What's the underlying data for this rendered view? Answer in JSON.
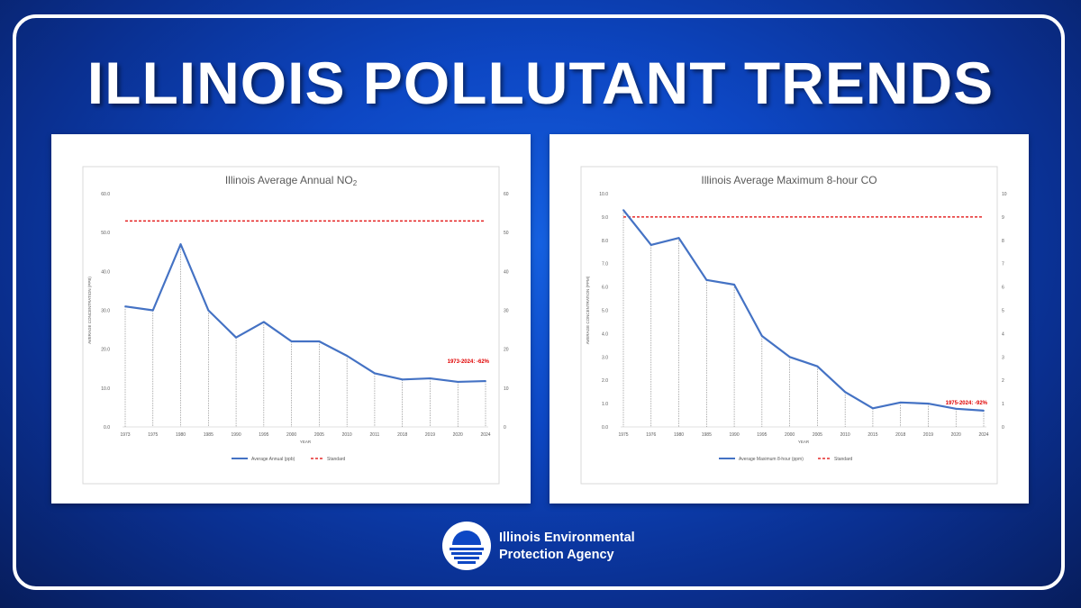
{
  "headline": "ILLINOIS POLLUTANT TRENDS",
  "agency": {
    "line1": "Illinois Environmental",
    "line2": "Protection Agency"
  },
  "colors": {
    "series": "#4472c4",
    "standard": "#e00000",
    "annotation": "#e00000",
    "background": "#0d47c4"
  },
  "chart_data": [
    {
      "type": "line",
      "title": "Illinois Average Annual NO",
      "title_subscript": "2",
      "xlabel": "YEAR",
      "ylabel": "AVERAGE CONCENTRATION (PPB)",
      "x": [
        "1973",
        "1975",
        "1980",
        "1985",
        "1990",
        "1995",
        "2000",
        "2005",
        "2010",
        "2011",
        "2018",
        "2019",
        "2020",
        "2024"
      ],
      "ylim": [
        0,
        60
      ],
      "left_ticks": [
        "0.0",
        "10.0",
        "20.0",
        "30.0",
        "40.0",
        "50.0",
        "60.0"
      ],
      "right_ticks": [
        "0",
        "10",
        "20",
        "30",
        "40",
        "50",
        "60"
      ],
      "series": [
        {
          "name": "Average Annual (ppb)",
          "values": [
            31,
            30,
            47,
            30,
            23,
            27,
            22,
            22,
            18.3,
            13.8,
            12.2,
            12.5,
            11.6,
            11.8
          ]
        },
        {
          "name": "Standard",
          "values": [
            53,
            53,
            53,
            53,
            53,
            53,
            53,
            53,
            53,
            53,
            53,
            53,
            53,
            53
          ],
          "style": "dashed"
        }
      ],
      "annotation": "1973-2024: -62%",
      "grid": false,
      "legend": "bottom"
    },
    {
      "type": "line",
      "title": "Illinois Average Maximum 8-hour CO",
      "title_subscript": "",
      "xlabel": "YEAR",
      "ylabel": "AVERAGE CONCENTRATION (PPM)",
      "x": [
        "1975",
        "1976",
        "1980",
        "1985",
        "1990",
        "1995",
        "2000",
        "2005",
        "2010",
        "2015",
        "2018",
        "2019",
        "2020",
        "2024"
      ],
      "ylim": [
        0,
        10
      ],
      "left_ticks": [
        "0.0",
        "1.0",
        "2.0",
        "3.0",
        "4.0",
        "5.0",
        "6.0",
        "7.0",
        "8.0",
        "9.0",
        "10.0"
      ],
      "right_ticks": [
        "0",
        "1",
        "2",
        "3",
        "4",
        "5",
        "6",
        "7",
        "8",
        "9",
        "10"
      ],
      "series": [
        {
          "name": "Average Maximum 8-hour (ppm)",
          "values": [
            9.3,
            7.8,
            8.1,
            6.3,
            6.1,
            3.9,
            3.0,
            2.6,
            1.5,
            0.8,
            1.05,
            1.0,
            0.78,
            0.7
          ]
        },
        {
          "name": "Standard",
          "values": [
            9,
            9,
            9,
            9,
            9,
            9,
            9,
            9,
            9,
            9,
            9,
            9,
            9,
            9
          ],
          "style": "dashed"
        }
      ],
      "annotation": "1975-2024: -92%",
      "grid": false,
      "legend": "bottom"
    }
  ]
}
